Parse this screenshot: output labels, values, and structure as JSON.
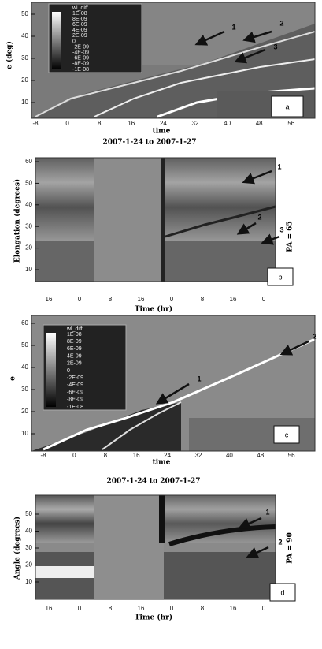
{
  "captions": [
    "2007-1-24 to 2007-1-27",
    "2007-1-24 to 2007-1-27"
  ],
  "panels": [
    {
      "letter": "a",
      "y_label": "e (deg)",
      "x_label": "time",
      "yticks": [
        "10",
        "20",
        "30",
        "40",
        "50"
      ],
      "xticks": [
        "-8",
        "0",
        "8",
        "16",
        "24",
        "32",
        "40",
        "48",
        "56"
      ],
      "legend": {
        "title": "wl_diff",
        "labels": [
          "1E-08",
          "8E-09",
          "6E-09",
          "4E-09",
          "2E-09",
          "0",
          "-2E-09",
          "-4E-09",
          "-6E-09",
          "-8E-09",
          "-1E-08"
        ]
      },
      "arrows": [
        "1",
        "2",
        "3"
      ]
    },
    {
      "letter": "b",
      "y_label": "Elongation (degrees)",
      "x_label": "Time (hr)",
      "side_label": "PA = 65",
      "yticks": [
        "10",
        "20",
        "30",
        "40",
        "50",
        "60"
      ],
      "xticks": [
        "16",
        "0",
        "8",
        "16",
        "0",
        "8",
        "16",
        "0"
      ],
      "arrows": [
        "1",
        "2",
        "3"
      ]
    },
    {
      "letter": "c",
      "y_label": "e",
      "x_label": "time",
      "yticks": [
        "10",
        "20",
        "30",
        "40",
        "50",
        "60"
      ],
      "xticks": [
        "-8",
        "0",
        "8",
        "16",
        "24",
        "32",
        "40",
        "48",
        "56"
      ],
      "legend": {
        "title": "wl_diff",
        "labels": [
          "1E-08",
          "8E-09",
          "6E-09",
          "4E-09",
          "2E-09",
          "0",
          "-2E-09",
          "-4E-09",
          "-6E-09",
          "-8E-09",
          "-1E-08"
        ]
      },
      "arrows": [
        "1",
        "2"
      ]
    },
    {
      "letter": "d",
      "y_label": "Angle (degrees)",
      "x_label": "Time (hr)",
      "side_label": "PA = 90",
      "yticks": [
        "10",
        "20",
        "30",
        "40",
        "50"
      ],
      "xticks": [
        "16",
        "0",
        "8",
        "16",
        "0",
        "8",
        "16",
        "0"
      ],
      "arrows": [
        "1",
        "2"
      ]
    }
  ]
}
